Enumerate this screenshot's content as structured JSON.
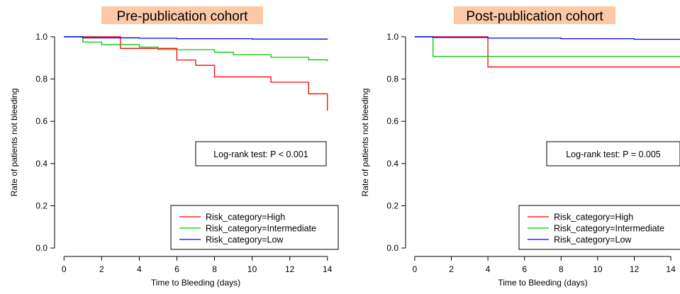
{
  "chart_data": [
    {
      "type": "line",
      "title": "Pre-publication cohort",
      "xlabel": "Time to Bleeding (days)",
      "ylabel": "Rate of patients not bleeding",
      "xlim": [
        -0.5,
        14.5
      ],
      "ylim": [
        -0.04,
        1.04
      ],
      "xticks": [
        0,
        2,
        4,
        6,
        8,
        10,
        12,
        14
      ],
      "yticks": [
        0.0,
        0.2,
        0.4,
        0.6,
        0.8,
        1.0
      ],
      "annotation": "Log-rank test: P < 0.001",
      "legend_position": "bottom-right",
      "series": [
        {
          "name": "Risk_category=High",
          "color": "#ff0000",
          "x": [
            0,
            3,
            6,
            7,
            8,
            11,
            13,
            14
          ],
          "y": [
            1.0,
            0.945,
            0.89,
            0.865,
            0.81,
            0.785,
            0.73,
            0.65
          ]
        },
        {
          "name": "Risk_category=Intermediate",
          "color": "#00cc00",
          "x": [
            0,
            1,
            2,
            4,
            5,
            8,
            9,
            11,
            13,
            14
          ],
          "y": [
            1.0,
            0.975,
            0.963,
            0.951,
            0.939,
            0.927,
            0.915,
            0.903,
            0.891,
            0.885
          ]
        },
        {
          "name": "Risk_category=Low",
          "color": "#0000ff",
          "x": [
            0,
            1,
            4,
            6,
            10,
            14
          ],
          "y": [
            1.0,
            0.995,
            0.993,
            0.991,
            0.989,
            0.987
          ]
        }
      ]
    },
    {
      "type": "line",
      "title": "Post-publication cohort",
      "xlabel": "Time to Bleeding (days)",
      "ylabel": "Rate of patients not bleeding",
      "xlim": [
        -0.5,
        14.5
      ],
      "ylim": [
        -0.04,
        1.04
      ],
      "xticks": [
        0,
        2,
        4,
        6,
        8,
        10,
        12,
        14
      ],
      "yticks": [
        0.0,
        0.2,
        0.4,
        0.6,
        0.8,
        1.0
      ],
      "annotation": "Log-rank test: P = 0.005",
      "legend_position": "bottom-right",
      "series": [
        {
          "name": "Risk_category=High",
          "color": "#ff0000",
          "x": [
            0,
            4,
            14.5
          ],
          "y": [
            1.0,
            0.857,
            0.857
          ]
        },
        {
          "name": "Risk_category=Intermediate",
          "color": "#00cc00",
          "x": [
            0,
            1,
            14.5
          ],
          "y": [
            1.0,
            0.907,
            0.907
          ]
        },
        {
          "name": "Risk_category=Low",
          "color": "#0000ff",
          "x": [
            0,
            1,
            4,
            8,
            12,
            14.5
          ],
          "y": [
            1.0,
            0.997,
            0.994,
            0.991,
            0.988,
            0.986
          ]
        }
      ]
    }
  ]
}
